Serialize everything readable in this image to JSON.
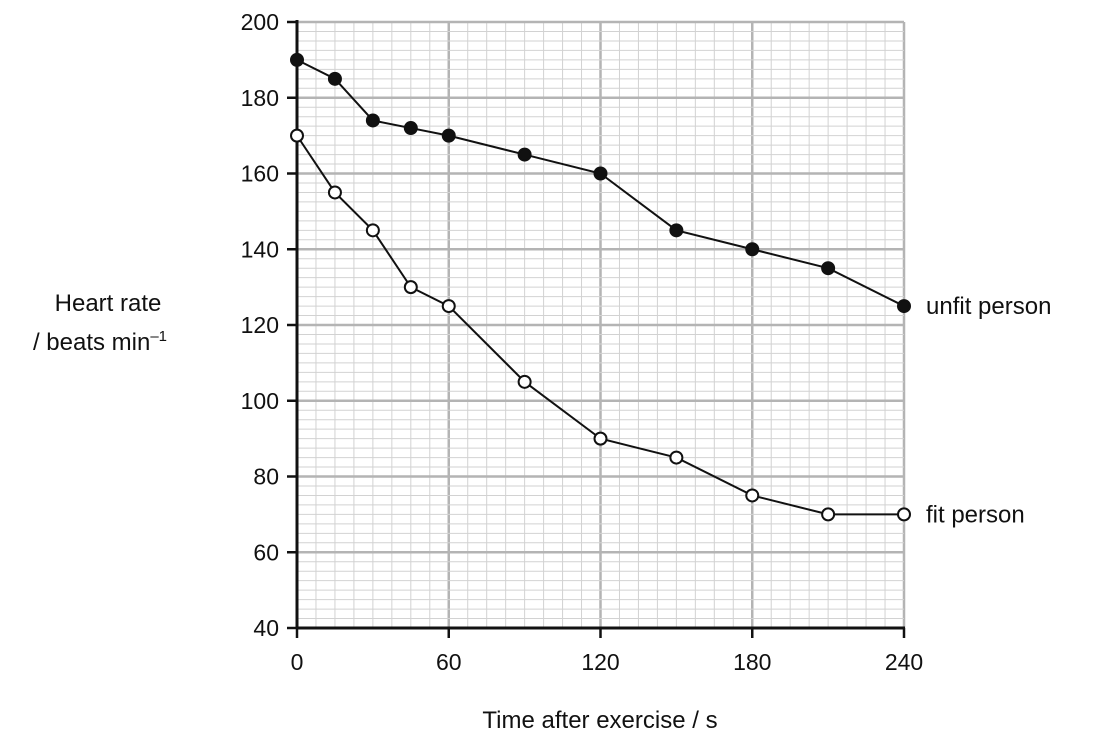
{
  "chart_data": {
    "type": "line",
    "xlabel": "Time after exercise / s",
    "ylabel_line1": "Heart rate",
    "ylabel_line2": "/ beats min",
    "ylabel_exponent": "–1",
    "xlim": [
      0,
      240
    ],
    "ylim": [
      40,
      200
    ],
    "xticks": [
      "0",
      "60",
      "120",
      "180",
      "240"
    ],
    "yticks": [
      "40",
      "60",
      "80",
      "100",
      "120",
      "140",
      "160",
      "180",
      "200"
    ],
    "grid": true,
    "series": [
      {
        "name": "unfit person",
        "marker": "filled-circle",
        "x": [
          0,
          15,
          30,
          45,
          60,
          90,
          120,
          150,
          180,
          210,
          240
        ],
        "y": [
          190,
          185,
          174,
          172,
          170,
          165,
          160,
          145,
          140,
          135,
          125
        ]
      },
      {
        "name": "fit person",
        "marker": "open-circle",
        "x": [
          0,
          15,
          30,
          45,
          60,
          90,
          120,
          150,
          180,
          210,
          240
        ],
        "y": [
          170,
          155,
          145,
          130,
          125,
          105,
          90,
          85,
          75,
          70,
          70
        ]
      }
    ]
  },
  "colors": {
    "grid_minor": "#d2d2d2",
    "grid_major": "#b4b4b4",
    "axis": "#111111",
    "line": "#111111"
  }
}
